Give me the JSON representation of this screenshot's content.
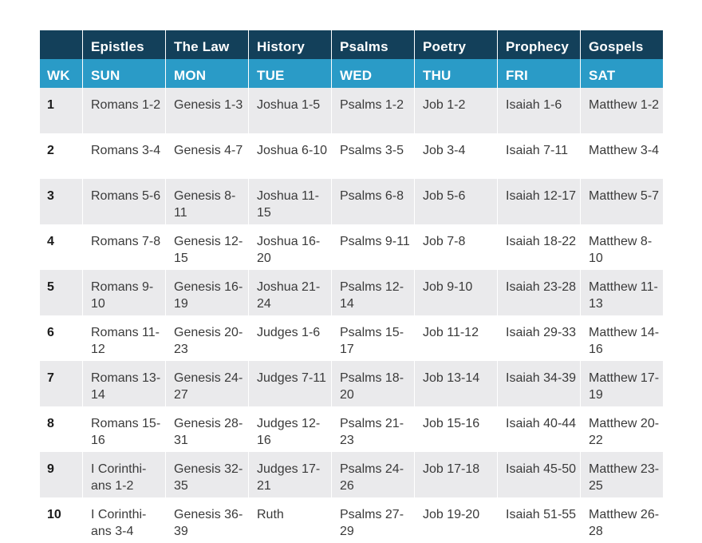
{
  "header": {
    "category_row": [
      "",
      "Epistles",
      "The Law",
      "History",
      "Psalms",
      "Poetry",
      "Prophecy",
      "Gospels"
    ],
    "day_row": [
      "WK",
      "SUN",
      "MON",
      "TUE",
      "WED",
      "THU",
      "FRI",
      "SAT"
    ]
  },
  "rows": [
    {
      "wk": "1",
      "cells": [
        "Romans 1-2",
        "Genesis 1-3",
        "Joshua 1-5",
        "Psalms 1-2",
        "Job 1-2",
        "Isaiah 1-6",
        "Matthew 1-2"
      ]
    },
    {
      "wk": "2",
      "cells": [
        "Romans 3-4",
        "Genesis 4-7",
        "Joshua 6-10",
        "Psalms 3-5",
        "Job 3-4",
        "Isaiah 7-11",
        "Matthew 3-4"
      ]
    },
    {
      "wk": "3",
      "cells": [
        "Romans 5-6",
        "Genesis 8-11",
        "Joshua 11-15",
        "Psalms 6-8",
        "Job 5-6",
        "Isaiah 12-17",
        "Matthew 5-7"
      ]
    },
    {
      "wk": "4",
      "cells": [
        "Romans 7-8",
        "Genesis 12-15",
        "Joshua 16-20",
        "Psalms 9-11",
        "Job 7-8",
        "Isaiah 18-22",
        "Matthew 8-10"
      ]
    },
    {
      "wk": "5",
      "cells": [
        "Romans 9-10",
        "Genesis 16-19",
        "Joshua 21-24",
        "Psalms 12-14",
        "Job 9-10",
        "Isaiah 23-28",
        "Matthew 11-13"
      ]
    },
    {
      "wk": "6",
      "cells": [
        "Romans 11-12",
        "Genesis 20-23",
        "Judges 1-6",
        "Psalms 15-17",
        "Job 11-12",
        "Isaiah 29-33",
        "Matthew 14-16"
      ]
    },
    {
      "wk": "7",
      "cells": [
        "Romans 13-14",
        "Genesis 24-27",
        "Judges 7-11",
        "Psalms 18-20",
        "Job 13-14",
        "Isaiah 34-39",
        "Matthew 17-19"
      ]
    },
    {
      "wk": "8",
      "cells": [
        "Romans 15-16",
        "Genesis 28-31",
        "Judges 12-16",
        "Psalms 21-23",
        "Job 15-16",
        "Isaiah 40-44",
        "Matthew 20-22"
      ]
    },
    {
      "wk": "9",
      "cells": [
        "I Corinthi-ans 1-2",
        "Genesis 32-35",
        "Judges 17-21",
        "Psalms 24-26",
        "Job 17-18",
        "Isaiah 45-50",
        "Matthew 23-25"
      ]
    },
    {
      "wk": "10",
      "cells": [
        "I Corinthi-ans 3-4",
        "Genesis 36-39",
        "Ruth",
        "Psalms 27-29",
        "Job 19-20",
        "Isaiah 51-55",
        "Matthew 26-28"
      ]
    }
  ]
}
